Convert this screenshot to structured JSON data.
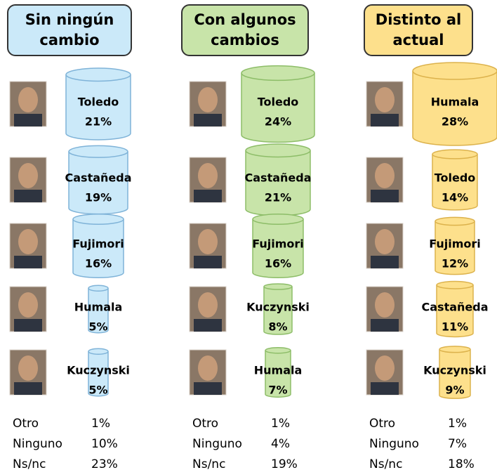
{
  "chart_data": [
    {
      "type": "cylinder",
      "title": "Sin ningún cambio",
      "color": "#cbe9f9",
      "categories": [
        "Toledo",
        "Castañeda",
        "Fujimori",
        "Humala",
        "Kuczynski"
      ],
      "values": [
        21,
        19,
        16,
        5,
        5
      ],
      "value_labels": [
        "21%",
        "19%",
        "16%",
        "5%",
        "5%"
      ],
      "others": {
        "categories": [
          "Otro",
          "Ninguno",
          "Ns/nc"
        ],
        "values": [
          1,
          10,
          23
        ],
        "value_labels": [
          "1%",
          "10%",
          "23%"
        ]
      }
    },
    {
      "type": "cylinder",
      "title": "Con algunos cambios",
      "color": "#c8e4a9",
      "categories": [
        "Toledo",
        "Castañeda",
        "Fujimori",
        "Kuczynski",
        "Humala"
      ],
      "values": [
        24,
        21,
        16,
        8,
        7
      ],
      "value_labels": [
        "24%",
        "21%",
        "16%",
        "8%",
        "7%"
      ],
      "others": {
        "categories": [
          "Otro",
          "Ninguno",
          "Ns/nc"
        ],
        "values": [
          1,
          4,
          19
        ],
        "value_labels": [
          "1%",
          "4%",
          "19%"
        ]
      }
    },
    {
      "type": "cylinder",
      "title": "Distinto al actual",
      "color": "#fde08c",
      "categories": [
        "Humala",
        "Toledo",
        "Fujimori",
        "Castañeda",
        "Kuczynski"
      ],
      "values": [
        28,
        14,
        12,
        11,
        9
      ],
      "value_labels": [
        "28%",
        "14%",
        "12%",
        "11%",
        "9%"
      ],
      "others": {
        "categories": [
          "Otro",
          "Ninguno",
          "Ns/nc"
        ],
        "values": [
          1,
          7,
          18
        ],
        "value_labels": [
          "1%",
          "7%",
          "18%"
        ]
      }
    }
  ]
}
